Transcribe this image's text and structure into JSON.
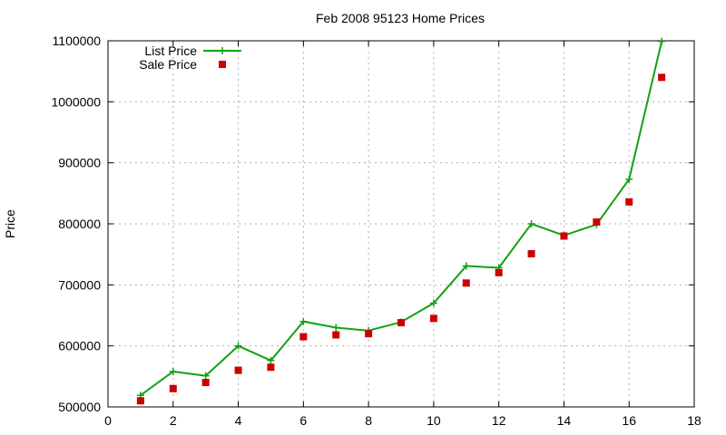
{
  "chart_data": {
    "type": "line",
    "title": "Feb 2008 95123 Home Prices",
    "xlabel": "",
    "ylabel": "Price",
    "xlim": [
      0,
      18
    ],
    "ylim": [
      500000,
      1100000
    ],
    "x_ticks": [
      "0",
      "2",
      "4",
      "6",
      "8",
      "10",
      "12",
      "14",
      "16",
      "18"
    ],
    "y_ticks": [
      "500000",
      "600000",
      "700000",
      "800000",
      "900000",
      "1000000",
      "1100000"
    ],
    "grid": true,
    "legend_position": "top-left",
    "x": [
      1,
      2,
      3,
      4,
      5,
      6,
      7,
      8,
      9,
      10,
      11,
      12,
      13,
      14,
      15,
      16,
      17
    ],
    "series": [
      {
        "name": "List Price",
        "style": "linespoints",
        "marker": "plus",
        "color": "#13a113",
        "values": [
          519000,
          558000,
          551000,
          600000,
          576000,
          640000,
          630000,
          625000,
          639000,
          670000,
          731000,
          728000,
          800000,
          781000,
          799000,
          873000,
          1099000
        ]
      },
      {
        "name": "Sale Price",
        "style": "points",
        "marker": "square",
        "color": "#cc0000",
        "values": [
          510000,
          530000,
          540000,
          560000,
          565000,
          615000,
          618000,
          620000,
          638000,
          645000,
          703000,
          720000,
          751000,
          780000,
          803000,
          836000,
          1040000
        ]
      }
    ]
  }
}
